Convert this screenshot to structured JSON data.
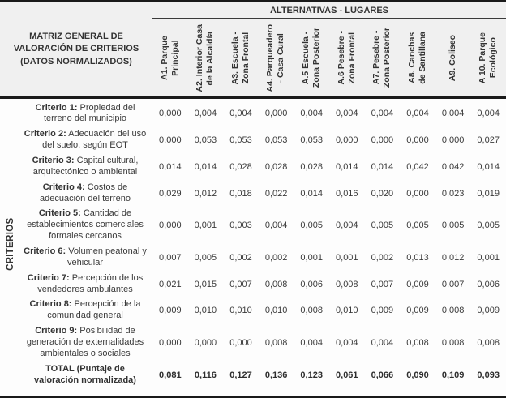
{
  "page": {
    "matrix_title": "MATRIZ GENERAL DE VALORACIÓN DE CRITERIOS (DATOS NORMALIZADOS)",
    "alternatives_header": "ALTERNATIVAS - LUGARES",
    "criteria_axis_label": "CRITERIOS"
  },
  "columns": [
    {
      "id": "a1",
      "label": "A1. Parque Principal",
      "lines": [
        "A1. Parque",
        "Principal"
      ]
    },
    {
      "id": "a2",
      "label": "A2. Interior Casa de la Alcaldía",
      "lines": [
        "A2. Interior Casa",
        "de la Alcaldía"
      ]
    },
    {
      "id": "a3",
      "label": "A3. Escuela - Zona Frontal",
      "lines": [
        "A3. Escuela -",
        "Zona Frontal"
      ]
    },
    {
      "id": "a4",
      "label": "A4. Parqueadero - Casa Cural",
      "lines": [
        "A4. Parqueadero",
        "- Casa Cural"
      ]
    },
    {
      "id": "a5",
      "label": "A.5 Escuela - Zona Posterior",
      "lines": [
        "A.5 Escuela -",
        "Zona Posterior"
      ]
    },
    {
      "id": "a6",
      "label": "A.6 Pesebre - Zona Frontal",
      "lines": [
        "A.6 Pesebre -",
        "Zona Frontal"
      ]
    },
    {
      "id": "a7",
      "label": "A7. Pesebre - Zona Posterior",
      "lines": [
        "A7. Pesebre -",
        "Zona Posterior"
      ]
    },
    {
      "id": "a8",
      "label": "A8. Canchas de Santillana",
      "lines": [
        "A8. Canchas",
        "de Santillana"
      ]
    },
    {
      "id": "a9",
      "label": "A9. Coliseo",
      "lines": [
        "A9. Coliseo"
      ]
    },
    {
      "id": "a10",
      "label": "A 10. Parque Ecológico",
      "lines": [
        "A 10. Parque",
        "Ecológico"
      ]
    }
  ],
  "rows": [
    {
      "id": "criterio-1",
      "strong": "Criterio 1:",
      "text": "Propiedad del terreno del municipio",
      "bold_values": false,
      "values": [
        "0,000",
        "0,004",
        "0,004",
        "0,000",
        "0,004",
        "0,004",
        "0,004",
        "0,004",
        "0,004",
        "0,004"
      ]
    },
    {
      "id": "criterio-2",
      "strong": "Criterio 2:",
      "text": "Adecuación del uso del suelo, según EOT",
      "bold_values": false,
      "values": [
        "0,000",
        "0,053",
        "0,053",
        "0,053",
        "0,053",
        "0,000",
        "0,000",
        "0,000",
        "0,000",
        "0,027"
      ]
    },
    {
      "id": "criterio-3",
      "strong": "Criterio 3:",
      "text": "Capital cultural, arquitectónico o ambiental",
      "bold_values": false,
      "values": [
        "0,014",
        "0,014",
        "0,028",
        "0,028",
        "0,028",
        "0,014",
        "0,014",
        "0,042",
        "0,042",
        "0,014"
      ]
    },
    {
      "id": "criterio-4",
      "strong": "Criterio 4:",
      "text": "Costos de adecuación del terreno",
      "bold_values": false,
      "values": [
        "0,029",
        "0,012",
        "0,018",
        "0,022",
        "0,014",
        "0,016",
        "0,020",
        "0,000",
        "0,023",
        "0,019"
      ]
    },
    {
      "id": "criterio-5",
      "strong": "Criterio 5:",
      "text": "Cantidad de establecimientos comerciales formales cercanos",
      "bold_values": false,
      "values": [
        "0,000",
        "0,001",
        "0,003",
        "0,004",
        "0,005",
        "0,004",
        "0,005",
        "0,005",
        "0,005",
        "0,005"
      ]
    },
    {
      "id": "criterio-6",
      "strong": "Criterio 6:",
      "text": "Volumen peatonal y vehicular",
      "bold_values": false,
      "values": [
        "0,007",
        "0,005",
        "0,002",
        "0,002",
        "0,001",
        "0,001",
        "0,002",
        "0,013",
        "0,012",
        "0,001"
      ]
    },
    {
      "id": "criterio-7",
      "strong": "Criterio 7:",
      "text": "Percepción de los vendedores ambulantes",
      "bold_values": false,
      "values": [
        "0,021",
        "0,015",
        "0,007",
        "0,008",
        "0,006",
        "0,008",
        "0,007",
        "0,009",
        "0,007",
        "0,006"
      ]
    },
    {
      "id": "criterio-8",
      "strong": "Criterio 8:",
      "text": "Percepción de la comunidad general",
      "bold_values": false,
      "values": [
        "0,009",
        "0,010",
        "0,010",
        "0,010",
        "0,008",
        "0,010",
        "0,009",
        "0,009",
        "0,008",
        "0,009"
      ]
    },
    {
      "id": "criterio-9",
      "strong": "Criterio 9:",
      "text": "Posibilidad de generación de externalidades ambientales o sociales",
      "bold_values": false,
      "values": [
        "0,000",
        "0,000",
        "0,000",
        "0,008",
        "0,004",
        "0,004",
        "0,004",
        "0,008",
        "0,008",
        "0,008"
      ]
    },
    {
      "id": "total",
      "strong": "TOTAL (Puntaje de valoración normalizada)",
      "text": "",
      "bold_values": true,
      "values": [
        "0,081",
        "0,116",
        "0,127",
        "0,136",
        "0,123",
        "0,061",
        "0,066",
        "0,090",
        "0,109",
        "0,093"
      ]
    }
  ]
}
